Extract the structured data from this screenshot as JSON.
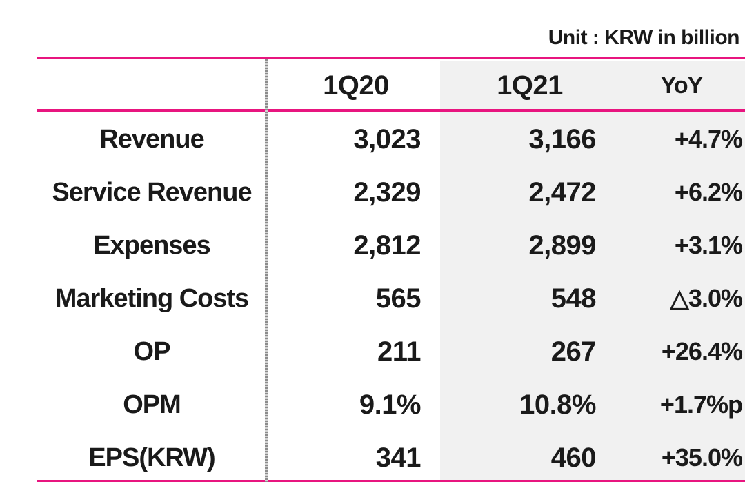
{
  "unit_label": "Unit : KRW in billion",
  "colors": {
    "accent_rule": "#e8157f",
    "shaded_column_bg": "#f1f1f1",
    "text": "#1a1a1a"
  },
  "table": {
    "columns": [
      "",
      "1Q20",
      "1Q21",
      "YoY"
    ],
    "rows": [
      {
        "label": "Revenue",
        "p1": "3,023",
        "p2": "3,166",
        "yoy": "+4.7%"
      },
      {
        "label": "Service Revenue",
        "p1": "2,329",
        "p2": "2,472",
        "yoy": "+6.2%"
      },
      {
        "label": "Expenses",
        "p1": "2,812",
        "p2": "2,899",
        "yoy": "+3.1%"
      },
      {
        "label": "Marketing Costs",
        "p1": "565",
        "p2": "548",
        "yoy": "△3.0%"
      },
      {
        "label": "OP",
        "p1": "211",
        "p2": "267",
        "yoy": "+26.4%"
      },
      {
        "label": "OPM",
        "p1": "9.1%",
        "p2": "10.8%",
        "yoy": "+1.7%p"
      },
      {
        "label": "EPS(KRW)",
        "p1": "341",
        "p2": "460",
        "yoy": "+35.0%"
      }
    ]
  }
}
